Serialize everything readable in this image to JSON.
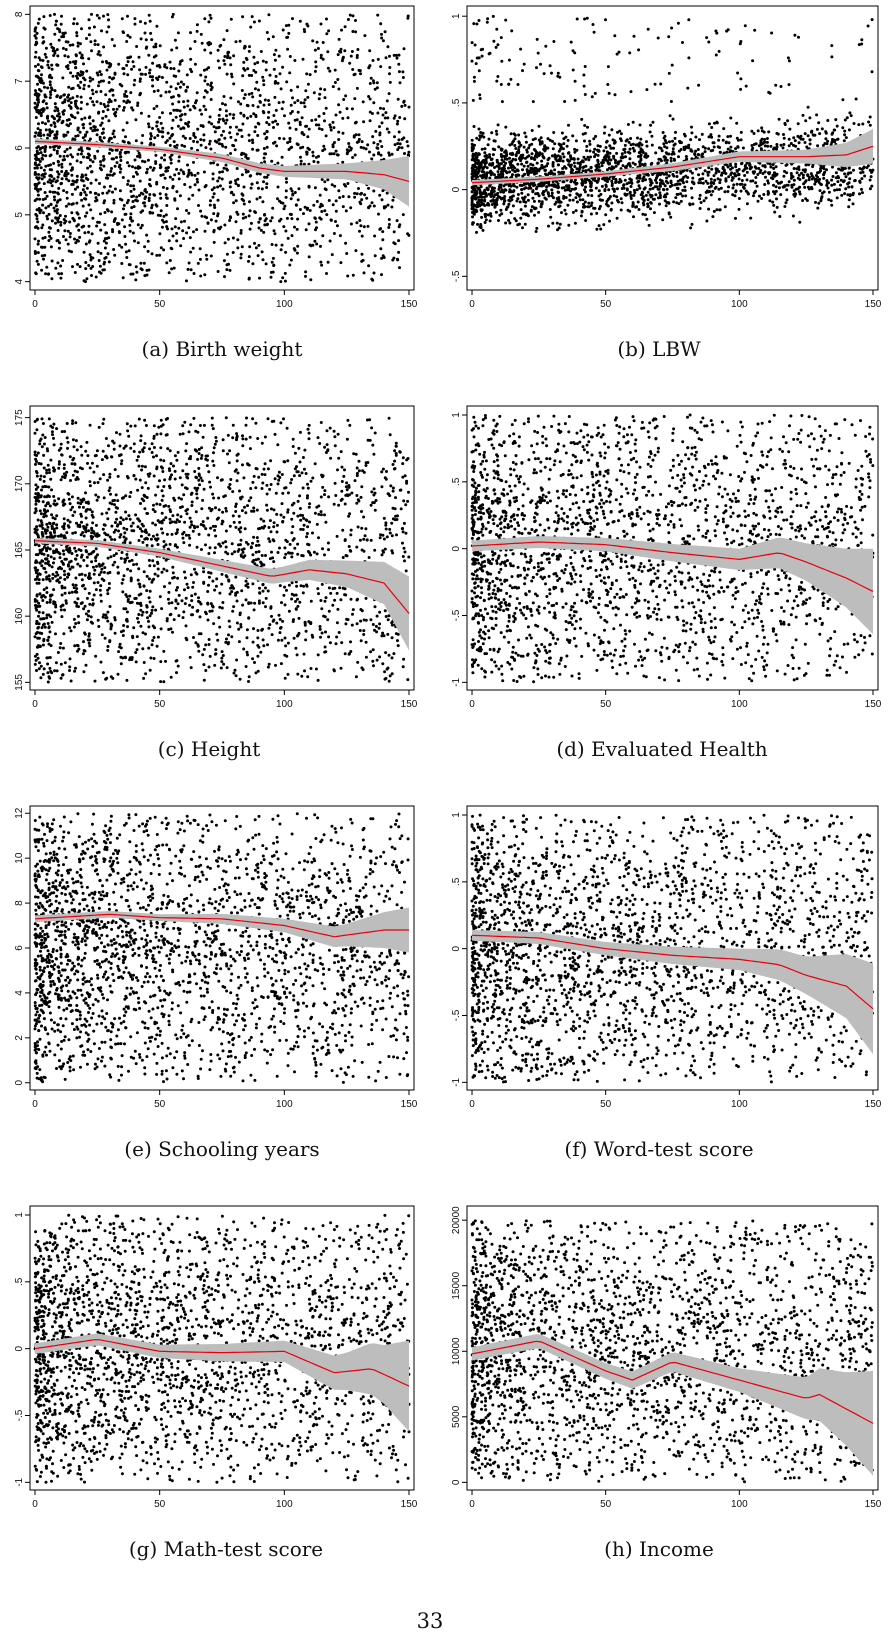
{
  "page_number": "33",
  "chart_data": [
    {
      "id": "a",
      "type": "scatter",
      "caption": "(a) Birth weight",
      "x_ticks": [
        0,
        50,
        100,
        150
      ],
      "xlim": [
        0,
        150
      ],
      "y_ticks": [
        4,
        5,
        6,
        7,
        8
      ],
      "y_tick_labels": [
        "4",
        "5",
        "6",
        "7",
        "8"
      ],
      "ylim": [
        3.95,
        8.05
      ],
      "scatter_distribution": {
        "n": 2400,
        "x_density": "decreasing",
        "y_center": 6.0,
        "y_min": 4.0,
        "y_max": 8.0
      },
      "smooth_line": {
        "x": [
          0,
          25,
          50,
          75,
          90,
          100,
          125,
          140,
          150
        ],
        "y": [
          6.1,
          6.05,
          5.98,
          5.85,
          5.7,
          5.65,
          5.65,
          5.6,
          5.5
        ]
      },
      "confidence_halfwidth": {
        "x": [
          0,
          50,
          100,
          125,
          140,
          150
        ],
        "y": [
          0.04,
          0.04,
          0.08,
          0.12,
          0.22,
          0.38
        ]
      },
      "colors": {
        "points": "#000000",
        "line": "#e8000b",
        "band": "#bdbdbd"
      }
    },
    {
      "id": "b",
      "type": "scatter",
      "caption": "(b) LBW",
      "x_ticks": [
        0,
        50,
        100,
        150
      ],
      "xlim": [
        0,
        150
      ],
      "y_ticks": [
        -0.5,
        0,
        0.5,
        1
      ],
      "y_tick_labels": [
        "-.5",
        "0",
        ".5",
        "1"
      ],
      "ylim": [
        -0.55,
        1.03
      ],
      "scatter_distribution": {
        "n": 2600,
        "x_density": "decreasing",
        "main_cluster": {
          "y_center": 0.05,
          "spread": 0.12
        },
        "upper_cluster": {
          "y_min": 0.5,
          "y_max": 1.0,
          "share": 0.06
        }
      },
      "smooth_line": {
        "x": [
          0,
          25,
          50,
          75,
          100,
          125,
          140,
          150
        ],
        "y": [
          0.04,
          0.06,
          0.09,
          0.13,
          0.19,
          0.19,
          0.2,
          0.25
        ]
      },
      "confidence_halfwidth": {
        "x": [
          0,
          50,
          100,
          125,
          140,
          150
        ],
        "y": [
          0.015,
          0.015,
          0.03,
          0.04,
          0.07,
          0.1
        ]
      },
      "colors": {
        "points": "#000000",
        "line": "#e8000b",
        "band": "#bdbdbd"
      }
    },
    {
      "id": "c",
      "type": "scatter",
      "caption": "(c) Height",
      "x_ticks": [
        0,
        50,
        100,
        150
      ],
      "xlim": [
        0,
        150
      ],
      "y_ticks": [
        155,
        160,
        165,
        170,
        175
      ],
      "y_tick_labels": [
        "155",
        "160",
        "165",
        "170",
        "175"
      ],
      "ylim": [
        154.8,
        175.5
      ],
      "scatter_distribution": {
        "n": 2400,
        "x_density": "decreasing",
        "y_center": 165,
        "y_min": 155,
        "y_max": 175
      },
      "smooth_line": {
        "x": [
          0,
          25,
          50,
          75,
          95,
          110,
          125,
          140,
          150
        ],
        "y": [
          165.7,
          165.5,
          164.8,
          163.8,
          163.0,
          163.5,
          163.2,
          162.5,
          160.2
        ]
      },
      "confidence_halfwidth": {
        "x": [
          0,
          50,
          100,
          125,
          140,
          150
        ],
        "y": [
          0.2,
          0.3,
          0.6,
          1.0,
          1.6,
          2.8
        ]
      },
      "colors": {
        "points": "#000000",
        "line": "#e8000b",
        "band": "#bdbdbd"
      }
    },
    {
      "id": "d",
      "type": "scatter",
      "caption": "(d) Evaluated Health",
      "x_ticks": [
        0,
        50,
        100,
        150
      ],
      "xlim": [
        0,
        150
      ],
      "y_ticks": [
        -1,
        -0.5,
        0,
        0.5,
        1
      ],
      "y_tick_labels": [
        "-1",
        "-.5",
        "0",
        ".5",
        "1"
      ],
      "ylim": [
        -1.02,
        1.03
      ],
      "scatter_distribution": {
        "n": 2400,
        "x_density": "decreasing",
        "y_center": 0,
        "y_min": -1,
        "y_max": 1
      },
      "smooth_line": {
        "x": [
          0,
          25,
          50,
          75,
          100,
          115,
          125,
          140,
          150
        ],
        "y": [
          0.02,
          0.05,
          0.03,
          -0.03,
          -0.08,
          -0.03,
          -0.1,
          -0.22,
          -0.32
        ]
      },
      "confidence_halfwidth": {
        "x": [
          0,
          50,
          100,
          125,
          140,
          150
        ],
        "y": [
          0.04,
          0.05,
          0.08,
          0.14,
          0.22,
          0.32
        ]
      },
      "colors": {
        "points": "#000000",
        "line": "#e8000b",
        "band": "#bdbdbd"
      }
    },
    {
      "id": "e",
      "type": "scatter",
      "caption": "(e) Schooling years",
      "x_ticks": [
        0,
        50,
        100,
        150
      ],
      "xlim": [
        0,
        150
      ],
      "y_ticks": [
        0,
        2,
        4,
        6,
        8,
        10,
        12
      ],
      "y_tick_labels": [
        "0",
        "2",
        "4",
        "6",
        "8",
        "10",
        "12"
      ],
      "ylim": [
        -0.1,
        12.1
      ],
      "scatter_distribution": {
        "n": 2400,
        "x_density": "decreasing",
        "y_center": 7.5,
        "y_min": 0,
        "y_max": 12
      },
      "smooth_line": {
        "x": [
          0,
          30,
          50,
          75,
          100,
          120,
          140,
          150
        ],
        "y": [
          7.3,
          7.5,
          7.35,
          7.3,
          7.0,
          6.5,
          6.8,
          6.8
        ]
      },
      "confidence_halfwidth": {
        "x": [
          0,
          50,
          100,
          125,
          140,
          150
        ],
        "y": [
          0.15,
          0.15,
          0.3,
          0.5,
          0.8,
          1.0
        ]
      },
      "colors": {
        "points": "#000000",
        "line": "#e8000b",
        "band": "#bdbdbd"
      }
    },
    {
      "id": "f",
      "type": "scatter",
      "caption": "(f) Word-test score",
      "x_ticks": [
        0,
        50,
        100,
        150
      ],
      "xlim": [
        0,
        150
      ],
      "y_ticks": [
        -1,
        -0.5,
        0,
        0.5,
        1
      ],
      "y_tick_labels": [
        "-1",
        "-.5",
        "0",
        ".5",
        "1"
      ],
      "ylim": [
        -1.02,
        1.03
      ],
      "scatter_distribution": {
        "n": 2400,
        "x_density": "decreasing",
        "y_center": 0,
        "y_min": -1,
        "y_max": 1
      },
      "smooth_line": {
        "x": [
          0,
          25,
          50,
          75,
          100,
          115,
          125,
          140,
          150
        ],
        "y": [
          0.1,
          0.08,
          0.0,
          -0.05,
          -0.08,
          -0.12,
          -0.2,
          -0.28,
          -0.45
        ]
      },
      "confidence_halfwidth": {
        "x": [
          0,
          50,
          100,
          125,
          140,
          150
        ],
        "y": [
          0.04,
          0.05,
          0.08,
          0.14,
          0.24,
          0.34
        ]
      },
      "colors": {
        "points": "#000000",
        "line": "#e8000b",
        "band": "#bdbdbd"
      }
    },
    {
      "id": "g",
      "type": "scatter",
      "caption": "(g) Math-test score",
      "x_ticks": [
        0,
        50,
        100,
        150
      ],
      "xlim": [
        0,
        150
      ],
      "y_ticks": [
        -1,
        -0.5,
        0,
        0.5,
        1
      ],
      "y_tick_labels": [
        "-1",
        "-.5",
        "0",
        ".5",
        "1"
      ],
      "ylim": [
        -1.02,
        1.03
      ],
      "scatter_distribution": {
        "n": 2400,
        "x_density": "decreasing",
        "y_center": 0,
        "y_min": -1,
        "y_max": 1
      },
      "smooth_line": {
        "x": [
          0,
          25,
          50,
          75,
          100,
          120,
          135,
          150
        ],
        "y": [
          0.0,
          0.07,
          -0.02,
          -0.03,
          -0.02,
          -0.18,
          -0.15,
          -0.28
        ]
      },
      "confidence_halfwidth": {
        "x": [
          0,
          50,
          100,
          125,
          140,
          150
        ],
        "y": [
          0.04,
          0.05,
          0.08,
          0.14,
          0.22,
          0.34
        ]
      },
      "colors": {
        "points": "#000000",
        "line": "#e8000b",
        "band": "#bdbdbd"
      }
    },
    {
      "id": "h",
      "type": "scatter",
      "caption": "(h) Income",
      "x_ticks": [
        0,
        50,
        100,
        150
      ],
      "xlim": [
        0,
        150
      ],
      "y_ticks": [
        0,
        5000,
        10000,
        15000,
        20000
      ],
      "y_tick_labels": [
        "0",
        "5000",
        "10000",
        "15000",
        "20000"
      ],
      "ylim": [
        -200,
        20700
      ],
      "scatter_distribution": {
        "n": 2400,
        "x_density": "decreasing",
        "y_center": 8000,
        "y_min": 0,
        "y_max": 20000
      },
      "smooth_line": {
        "x": [
          0,
          25,
          50,
          60,
          75,
          100,
          125,
          130,
          150
        ],
        "y": [
          9800,
          10800,
          8500,
          7800,
          9200,
          7800,
          6400,
          6700,
          4500
        ]
      },
      "confidence_halfwidth": {
        "x": [
          0,
          50,
          100,
          125,
          140,
          150
        ],
        "y": [
          500,
          600,
          900,
          1600,
          2800,
          4000
        ]
      },
      "colors": {
        "points": "#000000",
        "line": "#e8000b",
        "band": "#bdbdbd"
      }
    }
  ]
}
